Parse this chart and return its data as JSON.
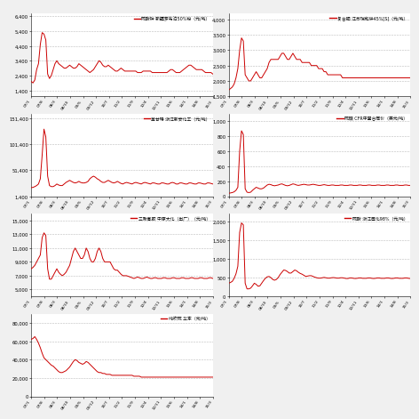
{
  "background_color": "#f0f0f0",
  "header_color": "#4472c4",
  "line_color": "#cc0000",
  "grid_color": "#bbbbbb",
  "panel_bg": "#ffffff",
  "panels": [
    {
      "title": "硫酸钟 新疆罗布泊50%粉（元/吨）",
      "ylim": [
        1000,
        6600
      ],
      "yticks": [
        1400,
        2400,
        3400,
        4400,
        5400,
        6400
      ],
      "data": [
        2000,
        1900,
        2100,
        2800,
        3200,
        4500,
        5300,
        5200,
        4800,
        2500,
        2200,
        2400,
        2800,
        3200,
        3400,
        3200,
        3100,
        3000,
        2900,
        2900,
        3000,
        3100,
        3000,
        2900,
        2900,
        3000,
        3200,
        3100,
        3000,
        2900,
        2800,
        2700,
        2600,
        2700,
        2800,
        3000,
        3200,
        3400,
        3300,
        3100,
        3000,
        3000,
        3100,
        3000,
        2900,
        2800,
        2700,
        2700,
        2800,
        2900,
        2800,
        2700,
        2700,
        2700,
        2700,
        2700,
        2700,
        2700,
        2600,
        2600,
        2600,
        2700,
        2700,
        2700,
        2700,
        2700,
        2600,
        2600,
        2600,
        2600,
        2600,
        2600,
        2600,
        2600,
        2600,
        2700,
        2800,
        2800,
        2700,
        2600,
        2600,
        2600,
        2700,
        2800,
        2900,
        3000,
        3100,
        3100,
        3000,
        2900,
        2800,
        2800,
        2800,
        2800,
        2700,
        2600,
        2600,
        2600,
        2600,
        2500
      ]
    },
    {
      "title": "复合肥 江苏瑞和牉45%[S]（元/吨）",
      "ylim": [
        1500,
        4200
      ],
      "yticks": [
        1500,
        2000,
        2500,
        3000,
        3500,
        4000
      ],
      "data": [
        1700,
        1750,
        1800,
        1900,
        2100,
        2400,
        3000,
        3400,
        3300,
        2200,
        2100,
        2000,
        2000,
        2100,
        2200,
        2300,
        2200,
        2100,
        2100,
        2200,
        2300,
        2400,
        2600,
        2700,
        2700,
        2700,
        2700,
        2700,
        2800,
        2900,
        2900,
        2800,
        2700,
        2700,
        2800,
        2900,
        2800,
        2700,
        2700,
        2700,
        2600,
        2600,
        2600,
        2600,
        2600,
        2500,
        2500,
        2500,
        2500,
        2400,
        2400,
        2400,
        2300,
        2300,
        2200,
        2200,
        2200,
        2200,
        2200,
        2200,
        2200,
        2200,
        2100,
        2100,
        2100,
        2100,
        2100,
        2100,
        2100,
        2100,
        2100,
        2100,
        2100,
        2100,
        2100,
        2100,
        2100,
        2100,
        2100,
        2100,
        2100,
        2100,
        2100,
        2100,
        2100,
        2100,
        2100,
        2100,
        2100,
        2100,
        2100,
        2100,
        2100,
        2100,
        2100,
        2100,
        2100,
        2100,
        2100,
        2100
      ]
    },
    {
      "title": "草甘蚦 浙江新安化工（元/吨）",
      "ylim": [
        1400,
        160000
      ],
      "yticks": [
        1400,
        51400,
        101400,
        151400
      ],
      "data": [
        18000,
        18500,
        20000,
        22000,
        25000,
        35000,
        80000,
        130000,
        115000,
        40000,
        22000,
        20000,
        20000,
        22000,
        25000,
        23000,
        22000,
        22000,
        25000,
        28000,
        30000,
        32000,
        30000,
        28000,
        27000,
        28000,
        30000,
        28000,
        27000,
        27000,
        28000,
        30000,
        35000,
        38000,
        40000,
        38000,
        35000,
        33000,
        30000,
        28000,
        28000,
        30000,
        32000,
        30000,
        28000,
        27000,
        28000,
        30000,
        28000,
        26000,
        25000,
        27000,
        28000,
        27000,
        26000,
        25000,
        27000,
        28000,
        27000,
        26000,
        25000,
        27000,
        28000,
        27000,
        26000,
        25000,
        27000,
        27000,
        26000,
        25000,
        25000,
        27000,
        27000,
        26000,
        25000,
        25000,
        27000,
        28000,
        27000,
        25000,
        25000,
        27000,
        27000,
        26000,
        25000,
        25000,
        27000,
        27000,
        26000,
        25000,
        25000,
        27000,
        27000,
        26000,
        25000,
        25000,
        27000,
        27000,
        26000,
        25000
      ]
    },
    {
      "title": "硫磺 CFR中国合同价（美元/吨）",
      "ylim": [
        0,
        1100
      ],
      "yticks": [
        0,
        200,
        400,
        600,
        800,
        1000
      ],
      "data": [
        40,
        45,
        50,
        60,
        80,
        120,
        600,
        870,
        820,
        100,
        55,
        50,
        55,
        80,
        100,
        120,
        110,
        100,
        100,
        110,
        130,
        150,
        160,
        155,
        145,
        140,
        145,
        150,
        160,
        165,
        155,
        145,
        140,
        145,
        155,
        165,
        160,
        150,
        145,
        150,
        155,
        160,
        155,
        150,
        150,
        155,
        160,
        155,
        150,
        145,
        145,
        150,
        155,
        150,
        145,
        145,
        150,
        150,
        145,
        145,
        145,
        150,
        150,
        145,
        145,
        145,
        150,
        150,
        145,
        145,
        145,
        150,
        150,
        145,
        145,
        145,
        150,
        150,
        145,
        145,
        145,
        150,
        150,
        145,
        145,
        145,
        150,
        150,
        145,
        145,
        145,
        150,
        150,
        145,
        145,
        145,
        150,
        150,
        145,
        145
      ]
    },
    {
      "title": "三聚氰胺 中原大化（出厂）（元/吨）",
      "ylim": [
        4000,
        16000
      ],
      "yticks": [
        5000,
        7000,
        9000,
        11000,
        13000,
        15000
      ],
      "data": [
        8000,
        8200,
        8500,
        9000,
        9500,
        10000,
        12500,
        13200,
        12800,
        8000,
        6500,
        6500,
        7000,
        7500,
        8000,
        7500,
        7200,
        7000,
        7200,
        7500,
        8000,
        8500,
        9500,
        10500,
        11000,
        10500,
        10000,
        9500,
        9500,
        10000,
        11000,
        10500,
        9500,
        9000,
        9000,
        9500,
        10500,
        11000,
        10500,
        9500,
        9000,
        9000,
        9000,
        9000,
        8500,
        8000,
        7800,
        7800,
        7500,
        7200,
        7000,
        7000,
        7000,
        6900,
        6800,
        6700,
        6600,
        6700,
        6800,
        6700,
        6600,
        6600,
        6700,
        6800,
        6700,
        6600,
        6600,
        6700,
        6700,
        6600,
        6600,
        6600,
        6700,
        6700,
        6600,
        6600,
        6600,
        6700,
        6700,
        6600,
        6600,
        6600,
        6700,
        6700,
        6600,
        6600,
        6600,
        6700,
        6700,
        6600,
        6600,
        6600,
        6700,
        6700,
        6600,
        6600,
        6600,
        6700,
        6700,
        6600
      ]
    },
    {
      "title": "硫酸 浙江巨化98%（元/吨）",
      "ylim": [
        0,
        2200
      ],
      "yticks": [
        0,
        500,
        1000,
        1500,
        2000
      ],
      "data": [
        350,
        370,
        400,
        480,
        600,
        800,
        1700,
        1950,
        1900,
        350,
        200,
        200,
        220,
        280,
        350,
        320,
        270,
        280,
        350,
        420,
        480,
        520,
        530,
        500,
        450,
        430,
        450,
        500,
        580,
        640,
        700,
        690,
        660,
        620,
        620,
        660,
        700,
        680,
        640,
        610,
        590,
        560,
        530,
        540,
        550,
        550,
        530,
        510,
        495,
        485,
        485,
        495,
        505,
        495,
        485,
        485,
        495,
        500,
        495,
        485,
        485,
        495,
        495,
        485,
        475,
        475,
        490,
        490,
        480,
        475,
        480,
        490,
        490,
        480,
        480,
        480,
        490,
        490,
        480,
        475,
        480,
        490,
        490,
        480,
        480,
        480,
        490,
        490,
        480,
        475,
        480,
        490,
        490,
        480,
        480,
        480,
        490,
        490,
        480,
        475
      ]
    },
    {
      "title": "纯吹硫 华东（元/吨）",
      "ylim": [
        0,
        90000
      ],
      "yticks": [
        0,
        20000,
        40000,
        60000,
        80000
      ],
      "data": [
        62000,
        63000,
        65000,
        62000,
        58000,
        53000,
        47000,
        42000,
        40000,
        38000,
        36000,
        34000,
        33000,
        31000,
        29000,
        27000,
        26000,
        26000,
        27000,
        28000,
        30000,
        32000,
        35000,
        38000,
        40000,
        39000,
        37000,
        36000,
        35000,
        36000,
        38000,
        37000,
        35000,
        33000,
        31000,
        29000,
        27000,
        26000,
        26000,
        25000,
        25000,
        24000,
        24000,
        24000,
        23000,
        23000,
        23000,
        23000,
        23000,
        23000,
        23000,
        23000,
        23000,
        23000,
        23000,
        23000,
        22000,
        22000,
        22000,
        22000,
        21000,
        21000,
        21000,
        21000,
        21000,
        21000,
        21000,
        21000,
        21000,
        21000,
        21000,
        21000,
        21000,
        21000,
        21000,
        21000,
        21000,
        21000,
        21000,
        21000,
        21000,
        21000,
        21000,
        21000,
        21000,
        21000,
        21000,
        21000,
        21000,
        21000,
        21000,
        21000,
        21000,
        21000,
        21000,
        21000,
        21000,
        21000,
        21000,
        21000
      ]
    }
  ]
}
